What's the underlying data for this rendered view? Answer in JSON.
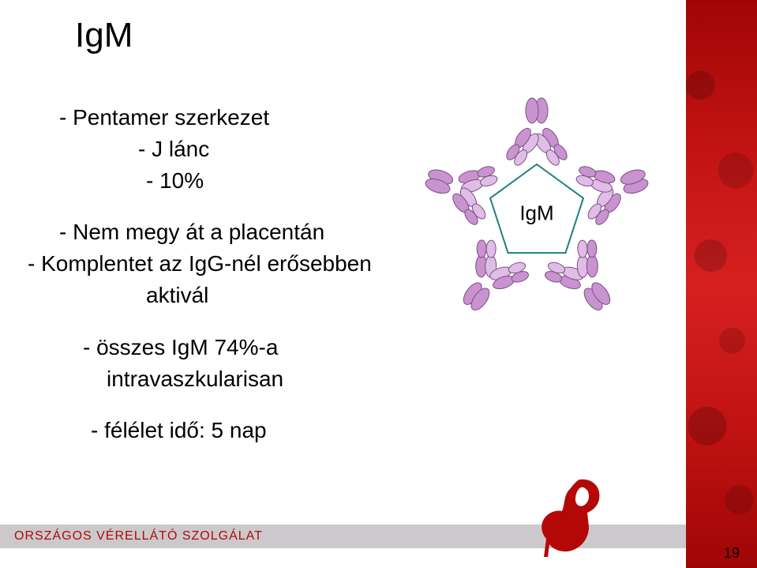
{
  "title": "IgM",
  "bullets": {
    "b1": "- Pentamer szerkezet",
    "b2": "- J lánc",
    "b3": "- 10%",
    "b4": "- Nem megy át a placentán",
    "b5": "- Komplentet az IgG-nél erősebben",
    "b6": "aktivál",
    "b7": "- összes IgM 74%-a",
    "b8": "intravaszkularisan",
    "b9": "- félélet idő: 5 nap"
  },
  "diagram": {
    "label": "IgM",
    "type": "pentamer-antibody",
    "units": 5,
    "pentagon_radius": 62,
    "antibody_radius": 110,
    "colors": {
      "pentagon_stroke": "#1c7f7f",
      "ab_fill": "#c893cf",
      "ab_stroke": "#7a4f82",
      "ab_light": "#e0bde6"
    }
  },
  "footer": {
    "org": "ORSZÁGOS VÉRELLÁTÓ SZOLGÁLAT",
    "page": "19"
  },
  "palette": {
    "stripe_start": "#a00505",
    "stripe_mid": "#d62020",
    "bar_bg": "#cbc9cb",
    "bar_text": "#b40808"
  }
}
